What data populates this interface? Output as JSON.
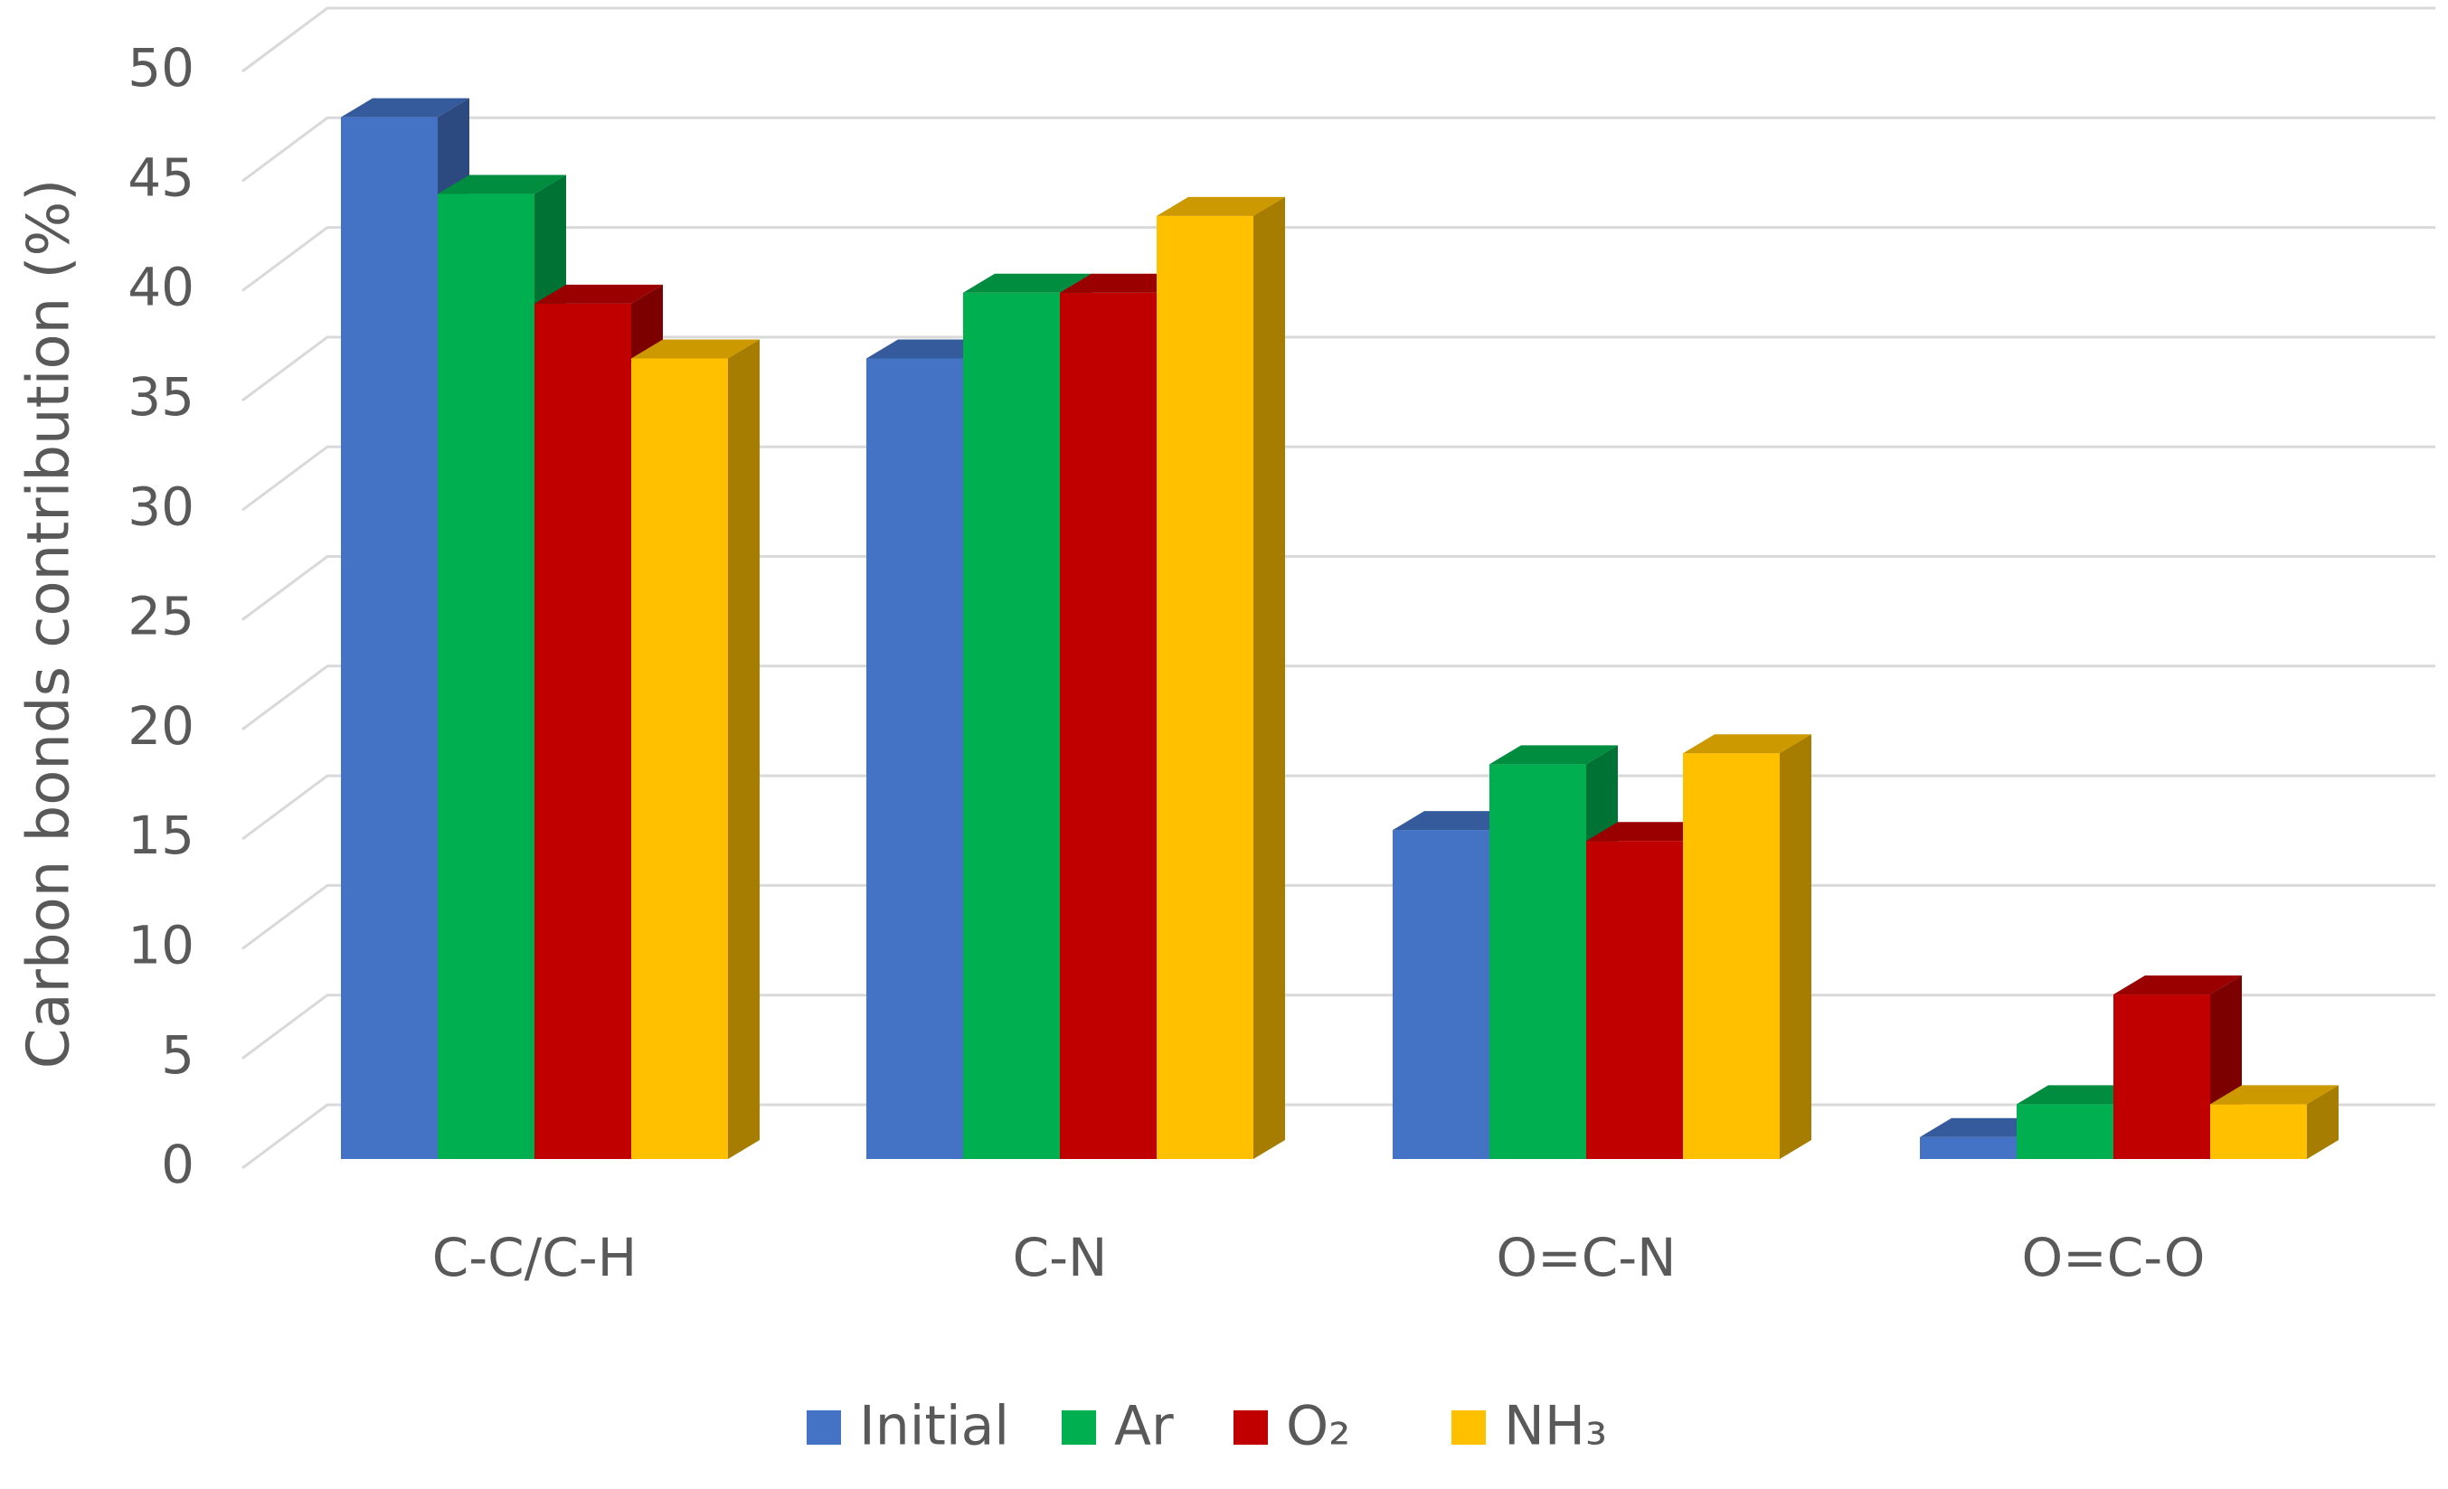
{
  "chart_data": {
    "type": "bar3d",
    "y_label": "Carbon bonds contribution (%)",
    "categories": [
      "C-C/C-H",
      "C-N",
      "O=C-N",
      "O=C-O"
    ],
    "series": [
      {
        "name": "Initial",
        "color": "#4472c4",
        "values": [
          47.5,
          36.5,
          15,
          1
        ]
      },
      {
        "name": "Ar",
        "color": "#00b050",
        "values": [
          44,
          39.5,
          18,
          2.5
        ]
      },
      {
        "name": "O₂",
        "color": "#c00000",
        "values": [
          39,
          39.5,
          14.5,
          7.5
        ]
      },
      {
        "name": "NH₃",
        "color": "#ffc000",
        "values": [
          36.5,
          43,
          18.5,
          2.5
        ]
      }
    ],
    "ylim": [
      0,
      50
    ],
    "yticks": [
      0,
      5,
      10,
      15,
      20,
      25,
      30,
      35,
      40,
      45,
      50
    ],
    "grid": true,
    "legend": "bottom"
  }
}
